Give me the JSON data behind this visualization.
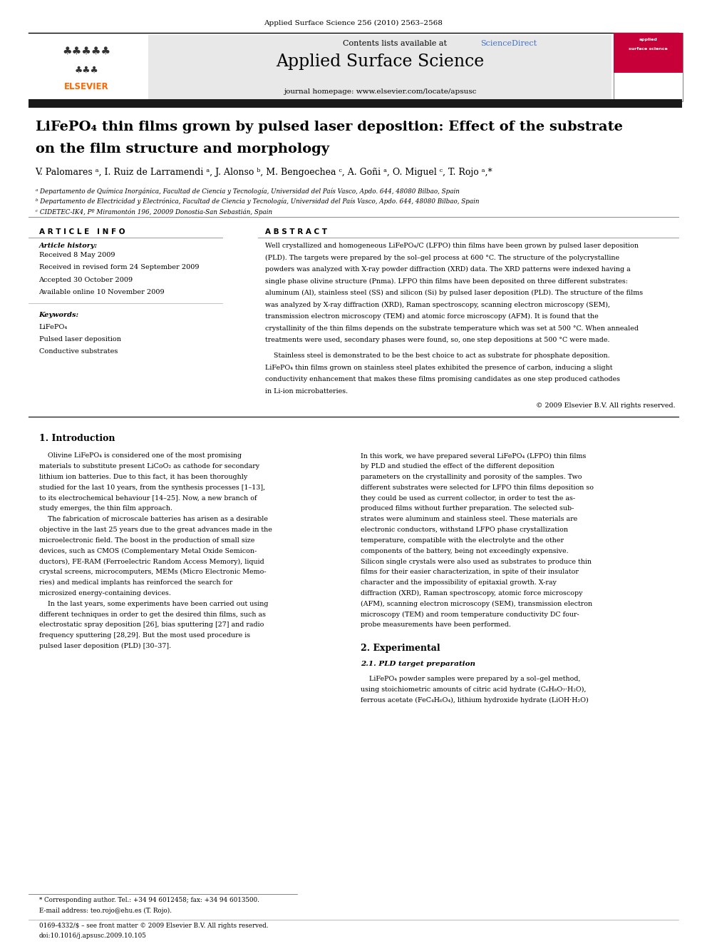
{
  "page_width": 9.92,
  "page_height": 13.23,
  "bg_color": "#ffffff",
  "journal_header_text": "Applied Surface Science 256 (2010) 2563–2568",
  "contents_text": "Contents lists available at ScienceDirect",
  "sciencedirect_color": "#4472c4",
  "journal_name": "Applied Surface Science",
  "journal_homepage": "journal homepage: www.elsevier.com/locate/apsusc",
  "header_bg": "#e8e8e8",
  "black_bar_color": "#1a1a1a",
  "title_line1": "LiFePO₄ thin films grown by pulsed laser deposition: Effect of the substrate",
  "title_line2": "on the film structure and morphology",
  "authors": "V. Palomares ᵃ, I. Ruiz de Larramendi ᵃ, J. Alonso ᵇ, M. Bengoechea ᶜ, A. Goñi ᵃ, O. Miguel ᶜ, T. Rojo ᵃ,*",
  "affil_a": "ᵃ Departamento de Química Inorgánica, Facultad de Ciencia y Tecnología, Universidad del País Vasco, Apdo. 644, 48080 Bilbao, Spain",
  "affil_b": "ᵇ Departamento de Electricidad y Electrónica, Facultad de Ciencia y Tecnología, Universidad del País Vasco, Apdo. 644, 48080 Bilbao, Spain",
  "affil_c": "ᶜ CIDETEC-IK4, Pº Miramontón 196, 20009 Donostia-San Sebastián, Spain",
  "article_info_header": "A R T I C L E   I N F O",
  "abstract_header": "A B S T R A C T",
  "article_history_header": "Article history:",
  "received": "Received 8 May 2009",
  "revised": "Received in revised form 24 September 2009",
  "accepted": "Accepted 30 October 2009",
  "available": "Available online 10 November 2009",
  "keywords_header": "Keywords:",
  "kw1": "LiFePO₄",
  "kw2": "Pulsed laser deposition",
  "kw3": "Conductive substrates",
  "copyright": "© 2009 Elsevier B.V. All rights reserved.",
  "section1_header": "1. Introduction",
  "section2_header": "2. Experimental",
  "section21_header": "2.1. PLD target preparation",
  "footnote_star": "* Corresponding author. Tel.: +34 94 6012458; fax: +34 94 6013500.",
  "footnote_email": "E-mail address: teo.rojo@ehu.es (T. Rojo).",
  "issn_text": "0169-4332/$ – see front matter © 2009 Elsevier B.V. All rights reserved.",
  "doi_text": "doi:10.1016/j.apsusc.2009.10.105",
  "elsevier_orange": "#ff6600",
  "abstract_col1_lines": [
    "Well crystallized and homogeneous LiFePO₄/C (LFPO) thin films have been grown by pulsed laser deposition",
    "(PLD). The targets were prepared by the sol–gel process at 600 °C. The structure of the polycrystalline",
    "powders was analyzed with X-ray powder diffraction (XRD) data. The XRD patterns were indexed having a",
    "single phase olivine structure (Pnma). LFPO thin films have been deposited on three different substrates:",
    "aluminum (Al), stainless steel (SS) and silicon (Si) by pulsed laser deposition (PLD). The structure of the films",
    "was analyzed by X-ray diffraction (XRD), Raman spectroscopy, scanning electron microscopy (SEM),",
    "transmission electron microscopy (TEM) and atomic force microscopy (AFM). It is found that the",
    "crystallinity of the thin films depends on the substrate temperature which was set at 500 °C. When annealed",
    "treatments were used, secondary phases were found, so, one step depositions at 500 °C were made."
  ],
  "abstract_col2_lines": [
    "    Stainless steel is demonstrated to be the best choice to act as substrate for phosphate deposition.",
    "LiFePO₄ thin films grown on stainless steel plates exhibited the presence of carbon, inducing a slight",
    "conductivity enhancement that makes these films promising candidates as one step produced cathodes",
    "in Li-ion microbatteries."
  ],
  "intro_col1_lines": [
    "    Olivine LiFePO₄ is considered one of the most promising",
    "materials to substitute present LiCoO₂ as cathode for secondary",
    "lithium ion batteries. Due to this fact, it has been thoroughly",
    "studied for the last 10 years, from the synthesis processes [1–13],",
    "to its electrochemical behaviour [14–25]. Now, a new branch of",
    "study emerges, the thin film approach.",
    "    The fabrication of microscale batteries has arisen as a desirable",
    "objective in the last 25 years due to the great advances made in the",
    "microelectronic field. The boost in the production of small size",
    "devices, such as CMOS (Complementary Metal Oxide Semicon-",
    "ductors), FE-RAM (Ferroelectric Random Access Memory), liquid",
    "crystal screens, microcomputers, MEMs (Micro Electronic Memo-",
    "ries) and medical implants has reinforced the search for",
    "microsized energy-containing devices.",
    "    In the last years, some experiments have been carried out using",
    "different techniques in order to get the desired thin films, such as",
    "electrostatic spray deposition [26], bias sputtering [27] and radio",
    "frequency sputtering [28,29]. But the most used procedure is",
    "pulsed laser deposition (PLD) [30–37]."
  ],
  "intro_col2_lines": [
    "In this work, we have prepared several LiFePO₄ (LFPO) thin films",
    "by PLD and studied the effect of the different deposition",
    "parameters on the crystallinity and porosity of the samples. Two",
    "different substrates were selected for LFPO thin films deposition so",
    "they could be used as current collector, in order to test the as-",
    "produced films without further preparation. The selected sub-",
    "strates were aluminum and stainless steel. These materials are",
    "electronic conductors, withstand LFPO phase crystallization",
    "temperature, compatible with the electrolyte and the other",
    "components of the battery, being not exceedingly expensive.",
    "Silicon single crystals were also used as substrates to produce thin",
    "films for their easier characterization, in spite of their insulator",
    "character and the impossibility of epitaxial growth. X-ray",
    "diffraction (XRD), Raman spectroscopy, atomic force microscopy",
    "(AFM), scanning electron microscopy (SEM), transmission electron",
    "microscopy (TEM) and room temperature conductivity DC four-",
    "probe measurements have been performed."
  ],
  "sec21_lines": [
    "    LiFePO₄ powder samples were prepared by a sol–gel method,",
    "using stoichiometric amounts of citric acid hydrate (C₆H₈O₇·H₂O),",
    "ferrous acetate (FeC₄H₆O₄), lithium hydroxide hydrate (LiOH·H₂O)"
  ]
}
